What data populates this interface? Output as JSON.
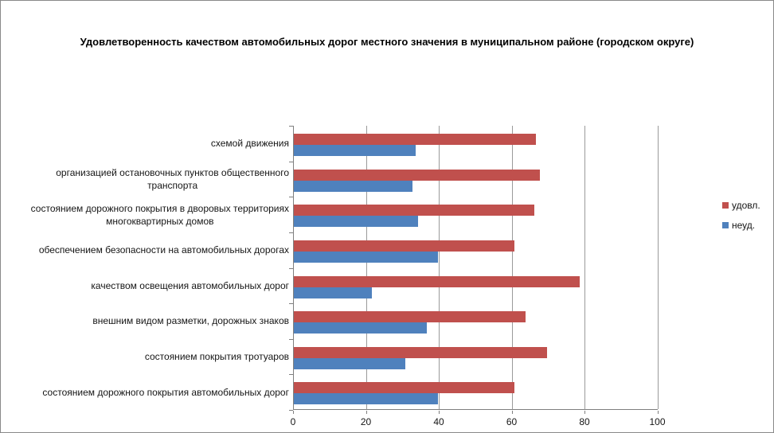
{
  "chart_data": {
    "type": "bar",
    "orientation": "horizontal",
    "title": "Удовлетворенность качеством автомобильных дорог местного значения в муниципальном районе (городском округе)",
    "categories": [
      "схемой движения",
      "организацией остановочных пунктов общественного\nтранспорта",
      "состоянием дорожного покрытия в дворовых территориях\nмногоквартирных домов",
      "обеспечением безопасности на автомобильных дорогах",
      "качеством освещения автомобильных дорог",
      "внешним видом разметки, дорожных знаков",
      "состоянием покрытия тротуаров",
      "состоянием дорожного покрытия автомобильных дорог"
    ],
    "series": [
      {
        "name": "удовл.",
        "color": "#C0504D",
        "values": [
          66.5,
          67.5,
          66,
          60.5,
          78.5,
          63.5,
          69.5,
          60.5
        ]
      },
      {
        "name": "неуд.",
        "color": "#4F81BD",
        "values": [
          33.5,
          32.5,
          34,
          39.5,
          21.5,
          36.5,
          30.5,
          39.5
        ]
      }
    ],
    "xlabel": "",
    "ylabel": "",
    "xlim": [
      0,
      100
    ],
    "x_ticks": [
      0,
      20,
      40,
      60,
      80,
      100
    ],
    "grid": true,
    "legend_position": "right",
    "colors": {
      "grid": "#9a9a9a",
      "axis": "#7f7f7f",
      "text": "#151515"
    }
  }
}
